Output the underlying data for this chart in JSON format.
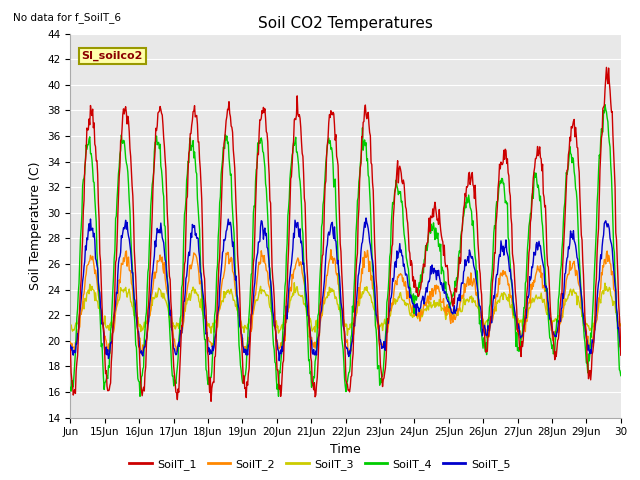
{
  "title": "Soil CO2 Temperatures",
  "xlabel": "Time",
  "ylabel": "Soil Temperature (C)",
  "ylim": [
    14,
    44
  ],
  "yticks": [
    14,
    16,
    18,
    20,
    22,
    24,
    26,
    28,
    30,
    32,
    34,
    36,
    38,
    40,
    42,
    44
  ],
  "annotation_text": "No data for f_SoilT_6",
  "box_label": "SI_soilco2",
  "x_tick_labels": [
    "Jun",
    "15Jun",
    "16Jun",
    "17Jun",
    "18Jun",
    "19Jun",
    "20Jun",
    "21Jun",
    "22Jun",
    "23Jun",
    "24Jun",
    "25Jun",
    "26Jun",
    "27Jun",
    "28Jun",
    "29Jun",
    "30"
  ],
  "series_colors": {
    "SoilT_1": "#cc0000",
    "SoilT_2": "#ff8800",
    "SoilT_3": "#cccc00",
    "SoilT_4": "#00cc00",
    "SoilT_5": "#0000cc"
  },
  "background_color": "#e8e8e8",
  "grid_color": "#ffffff"
}
